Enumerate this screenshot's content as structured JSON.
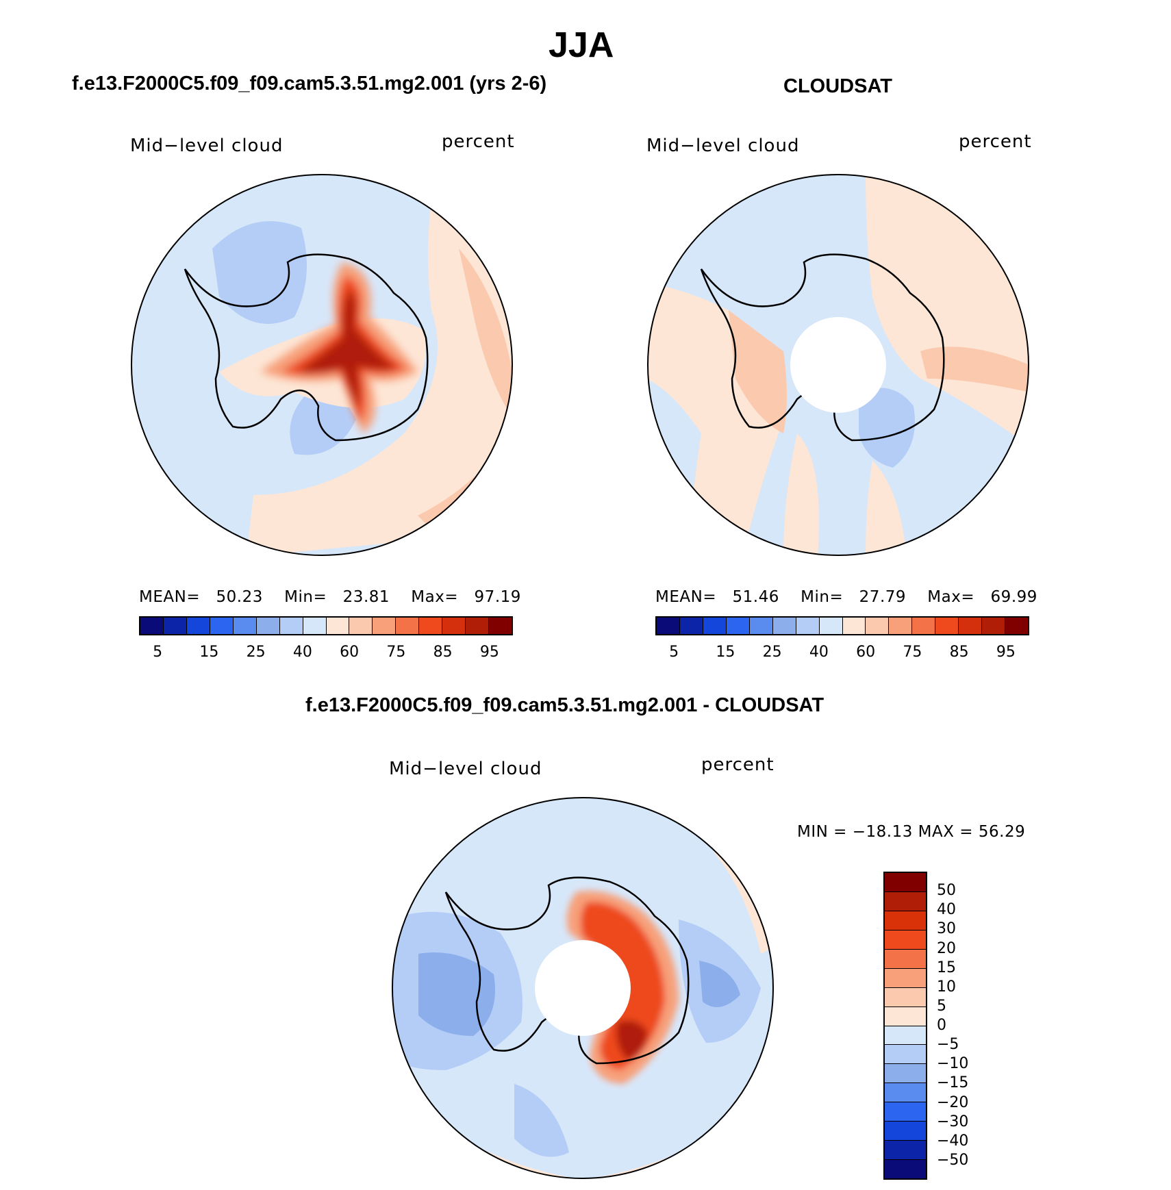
{
  "figure": {
    "season": "JJA",
    "panels": [
      {
        "title": "f.e13.F2000C5.f09_f09.cam5.3.51.mg2.001 (yrs 2-6)",
        "variable": "Mid−level cloud",
        "units": "percent",
        "stats": {
          "mean_label": "MEAN=",
          "mean": "50.23",
          "min_label": "Min=",
          "min": "23.81",
          "max_label": "Max=",
          "max": "97.19"
        },
        "colorbar_ticks": [
          "5",
          "15",
          "25",
          "40",
          "60",
          "75",
          "85",
          "95"
        ]
      },
      {
        "title": "CLOUDSAT",
        "variable": "Mid−level cloud",
        "units": "percent",
        "stats": {
          "mean_label": "MEAN=",
          "mean": "51.46",
          "min_label": "Min=",
          "min": "27.79",
          "max_label": "Max=",
          "max": "69.99"
        },
        "colorbar_ticks": [
          "5",
          "15",
          "25",
          "40",
          "60",
          "75",
          "85",
          "95"
        ]
      },
      {
        "title": "f.e13.F2000C5.f09_f09.cam5.3.51.mg2.001 - CLOUDSAT",
        "variable": "Mid−level cloud",
        "units": "percent",
        "stats_text": "MIN = −18.13 MAX =  56.29",
        "colorbar_ticks": [
          "50",
          "40",
          "30",
          "20",
          "15",
          "10",
          "5",
          "0",
          "−5",
          "−10",
          "−15",
          "−20",
          "−30",
          "−40",
          "−50"
        ]
      }
    ]
  },
  "colors": {
    "abs_scale": [
      "#0a0a78",
      "#0c25a8",
      "#1446dc",
      "#2c66f0",
      "#5a8cf0",
      "#8cafec",
      "#b4cdf7",
      "#d7e7fa",
      "#fde6d6",
      "#fbc9ad",
      "#f7a07a",
      "#f37247",
      "#ee4a1e",
      "#d5300e",
      "#b01e08",
      "#800000"
    ],
    "diff_scale": [
      "#800000",
      "#b01e08",
      "#d93208",
      "#ee4a1e",
      "#f37247",
      "#f7a07a",
      "#fbc9ad",
      "#fde6d6",
      "#d7e7fa",
      "#b4cdf7",
      "#8cafec",
      "#5a8cf0",
      "#2c66f0",
      "#1446dc",
      "#0c25a8",
      "#0a0a78"
    ]
  }
}
